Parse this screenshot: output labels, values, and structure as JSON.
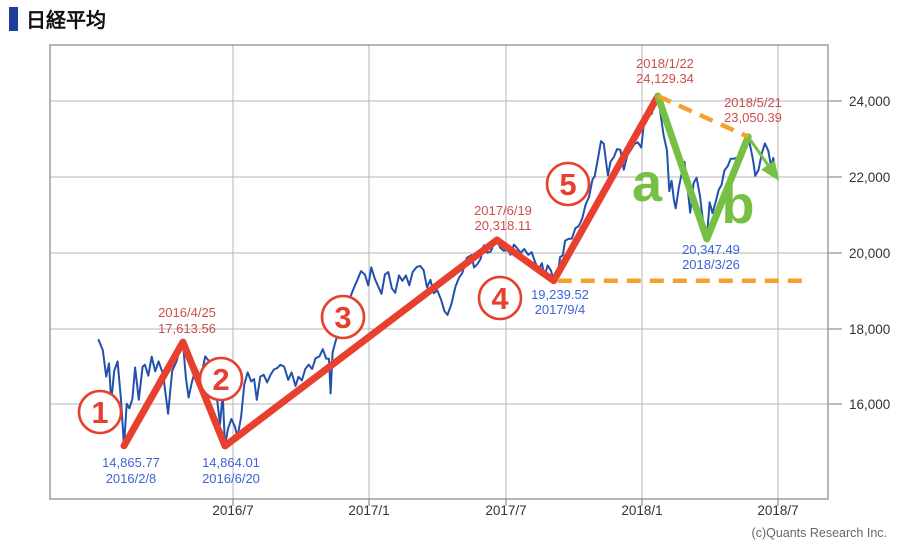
{
  "title": {
    "text": "日経平均"
  },
  "copyright": "(c)Quants Research Inc.",
  "colors": {
    "title_bullet": "#1e3f9c",
    "label_red": "#cc4f4f",
    "label_blue": "#3f63d6",
    "axis_text": "#333333",
    "copyright_gray": "#666666",
    "grid": "#b4b4b4",
    "border": "#8f8f8f"
  },
  "chart_data": {
    "type": "line",
    "title": "日経平均",
    "x_axis": {
      "ticks": [
        "2016/7",
        "2017/1",
        "2017/7",
        "2018/1",
        "2018/7"
      ],
      "tick_t_values": [
        6,
        12,
        18,
        24,
        30
      ],
      "t_unit": "months since 2016/01"
    },
    "y_axis": {
      "side": "right",
      "ticks": [
        "24,000",
        "22,000",
        "20,000",
        "18,000",
        "16,000"
      ],
      "tick_values": [
        24000,
        22000,
        20000,
        18000,
        16000
      ]
    },
    "grid": true,
    "legend": "none",
    "wave_markers": {
      "impulse": [
        "1",
        "2",
        "3",
        "4",
        "5"
      ],
      "correction": [
        "a",
        "b"
      ]
    },
    "point_labels": [
      {
        "line1": "14,865.77",
        "line2": "2016/2/8",
        "color": "blue"
      },
      {
        "line1": "2016/4/25",
        "line2": "17,613.56",
        "color": "red"
      },
      {
        "line1": "14,864.01",
        "line2": "2016/6/20",
        "color": "blue"
      },
      {
        "line1": "2017/6/19",
        "line2": "20,318.11",
        "color": "red"
      },
      {
        "line1": "19,239.52",
        "line2": "2017/9/4",
        "color": "blue"
      },
      {
        "line1": "2018/1/22",
        "line2": "24,129.34",
        "color": "red"
      },
      {
        "line1": "20,347.49",
        "line2": "2018/3/26",
        "color": "blue"
      },
      {
        "line1": "2018/5/21",
        "line2": "23,050.39",
        "color": "red"
      }
    ],
    "series": [
      {
        "name": "nikkei-daily-close",
        "color": "#2251ad",
        "style": "solid",
        "points": [
          [
            0.1,
            17690
          ],
          [
            0.3,
            17400
          ],
          [
            0.45,
            16700
          ],
          [
            0.57,
            17050
          ],
          [
            0.67,
            16020
          ],
          [
            0.8,
            16850
          ],
          [
            0.95,
            17100
          ],
          [
            1.1,
            16085
          ],
          [
            1.23,
            14866
          ],
          [
            1.35,
            15980
          ],
          [
            1.47,
            15860
          ],
          [
            1.6,
            16110
          ],
          [
            1.72,
            16940
          ],
          [
            1.88,
            16085
          ],
          [
            2.05,
            16960
          ],
          [
            2.15,
            17014
          ],
          [
            2.3,
            16724
          ],
          [
            2.45,
            17230
          ],
          [
            2.6,
            16840
          ],
          [
            2.75,
            17103
          ],
          [
            2.95,
            16760
          ],
          [
            3.17,
            15715
          ],
          [
            3.35,
            16850
          ],
          [
            3.55,
            17120
          ],
          [
            3.72,
            17572
          ],
          [
            3.82,
            17613
          ],
          [
            3.95,
            16666
          ],
          [
            4.07,
            16147
          ],
          [
            4.22,
            16565
          ],
          [
            4.4,
            16940
          ],
          [
            4.6,
            16650
          ],
          [
            4.8,
            17235
          ],
          [
            4.97,
            17110
          ],
          [
            5.12,
            16670
          ],
          [
            5.3,
            16210
          ],
          [
            5.45,
            15434
          ],
          [
            5.57,
            16240
          ],
          [
            5.67,
            14864
          ],
          [
            5.8,
            15309
          ],
          [
            5.95,
            15575
          ],
          [
            6.1,
            15382
          ],
          [
            6.22,
            15106
          ],
          [
            6.38,
            15630
          ],
          [
            6.52,
            16500
          ],
          [
            6.67,
            16810
          ],
          [
            6.82,
            16570
          ],
          [
            6.95,
            16635
          ],
          [
            7.07,
            16083
          ],
          [
            7.22,
            16700
          ],
          [
            7.37,
            16746
          ],
          [
            7.52,
            16546
          ],
          [
            7.67,
            16745
          ],
          [
            7.82,
            16887
          ],
          [
            7.97,
            16926
          ],
          [
            8.1,
            17012
          ],
          [
            8.27,
            16966
          ],
          [
            8.45,
            16614
          ],
          [
            8.6,
            16807
          ],
          [
            8.77,
            16450
          ],
          [
            8.9,
            16693
          ],
          [
            9.05,
            16598
          ],
          [
            9.2,
            16900
          ],
          [
            9.35,
            17018
          ],
          [
            9.5,
            16900
          ],
          [
            9.65,
            17185
          ],
          [
            9.82,
            17234
          ],
          [
            9.97,
            17425
          ],
          [
            10.12,
            17177
          ],
          [
            10.24,
            17171
          ],
          [
            10.31,
            16252
          ],
          [
            10.4,
            17344
          ],
          [
            10.55,
            17672
          ],
          [
            10.7,
            17967
          ],
          [
            10.85,
            18163
          ],
          [
            11.0,
            18513
          ],
          [
            11.15,
            18765
          ],
          [
            11.3,
            18996
          ],
          [
            11.48,
            19251
          ],
          [
            11.65,
            19494
          ],
          [
            11.82,
            19401
          ],
          [
            11.97,
            19114
          ],
          [
            12.1,
            19594
          ],
          [
            12.25,
            19301
          ],
          [
            12.4,
            19095
          ],
          [
            12.55,
            18894
          ],
          [
            12.7,
            19402
          ],
          [
            12.85,
            19467
          ],
          [
            13.0,
            19041
          ],
          [
            13.15,
            18918
          ],
          [
            13.32,
            19379
          ],
          [
            13.47,
            19238
          ],
          [
            13.62,
            19379
          ],
          [
            13.77,
            19119
          ],
          [
            13.92,
            19469
          ],
          [
            14.1,
            19604
          ],
          [
            14.25,
            19633
          ],
          [
            14.4,
            19521
          ],
          [
            14.55,
            19063
          ],
          [
            14.7,
            19263
          ],
          [
            14.85,
            18909
          ],
          [
            15.0,
            18983
          ],
          [
            15.17,
            18733
          ],
          [
            15.32,
            18432
          ],
          [
            15.45,
            18335
          ],
          [
            15.62,
            18621
          ],
          [
            15.8,
            19079
          ],
          [
            15.95,
            19310
          ],
          [
            16.1,
            19446
          ],
          [
            16.3,
            19843
          ],
          [
            16.5,
            19919
          ],
          [
            16.62,
            19590
          ],
          [
            16.77,
            19686
          ],
          [
            16.9,
            19813
          ],
          [
            17.05,
            20177
          ],
          [
            17.2,
            19979
          ],
          [
            17.35,
            20013
          ],
          [
            17.5,
            20230
          ],
          [
            17.62,
            20318
          ],
          [
            17.77,
            20110
          ],
          [
            17.92,
            20033
          ],
          [
            18.1,
            20055
          ],
          [
            18.22,
            19929
          ],
          [
            18.37,
            20195
          ],
          [
            18.52,
            20099
          ],
          [
            18.67,
            19975
          ],
          [
            18.82,
            20080
          ],
          [
            19.0,
            19925
          ],
          [
            19.15,
            19996
          ],
          [
            19.3,
            19729
          ],
          [
            19.45,
            19537
          ],
          [
            19.6,
            19703
          ],
          [
            19.72,
            19353
          ],
          [
            19.85,
            19646
          ],
          [
            20.0,
            19508
          ],
          [
            20.12,
            19240
          ],
          [
            20.27,
            19275
          ],
          [
            20.4,
            19865
          ],
          [
            20.52,
            19910
          ],
          [
            20.62,
            20299
          ],
          [
            20.77,
            20347
          ],
          [
            20.92,
            20356
          ],
          [
            21.07,
            20629
          ],
          [
            21.22,
            20690
          ],
          [
            21.37,
            20881
          ],
          [
            21.52,
            21255
          ],
          [
            21.67,
            21458
          ],
          [
            21.82,
            21911
          ],
          [
            21.92,
            22008
          ],
          [
            22.05,
            22420
          ],
          [
            22.2,
            22937
          ],
          [
            22.32,
            22869
          ],
          [
            22.42,
            22380
          ],
          [
            22.5,
            22028
          ],
          [
            22.62,
            22396
          ],
          [
            22.77,
            22523
          ],
          [
            22.9,
            22725
          ],
          [
            23.05,
            22707
          ],
          [
            23.2,
            22177
          ],
          [
            23.35,
            22553
          ],
          [
            23.5,
            22694
          ],
          [
            23.67,
            22866
          ],
          [
            23.82,
            22902
          ],
          [
            23.97,
            22765
          ],
          [
            24.1,
            23506
          ],
          [
            24.22,
            23714
          ],
          [
            24.32,
            23849
          ],
          [
            24.42,
            23653
          ],
          [
            24.55,
            23951
          ],
          [
            24.7,
            24129
          ],
          [
            24.82,
            23629
          ],
          [
            24.95,
            23098
          ],
          [
            25.1,
            22682
          ],
          [
            25.2,
            21610
          ],
          [
            25.3,
            21890
          ],
          [
            25.4,
            21383
          ],
          [
            25.48,
            21154
          ],
          [
            25.62,
            21720
          ],
          [
            25.77,
            22153
          ],
          [
            25.87,
            22389
          ],
          [
            26.0,
            21724
          ],
          [
            26.12,
            21042
          ],
          [
            26.27,
            21824
          ],
          [
            26.4,
            21968
          ],
          [
            26.55,
            21481
          ],
          [
            26.72,
            20618
          ],
          [
            26.85,
            20347
          ],
          [
            26.97,
            21317
          ],
          [
            27.1,
            21031
          ],
          [
            27.22,
            21292
          ],
          [
            27.37,
            21645
          ],
          [
            27.5,
            21779
          ],
          [
            27.62,
            22158
          ],
          [
            27.77,
            22278
          ],
          [
            27.9,
            22468
          ],
          [
            28.05,
            22473
          ],
          [
            28.2,
            22497
          ],
          [
            28.35,
            22758
          ],
          [
            28.5,
            22866
          ],
          [
            28.67,
            23050
          ],
          [
            28.8,
            22689
          ],
          [
            28.9,
            22358
          ],
          [
            28.98,
            22018
          ],
          [
            29.12,
            22172
          ],
          [
            29.27,
            22625
          ],
          [
            29.4,
            22878
          ],
          [
            29.55,
            22680
          ],
          [
            29.67,
            22278
          ],
          [
            29.77,
            22490
          ],
          [
            29.88,
            22050
          ]
        ]
      },
      {
        "name": "elliott-impulse-wave-1-5",
        "color": "#e8402e",
        "style": "solid-thick",
        "points": [
          [
            1.23,
            14865.77
          ],
          [
            3.82,
            17613.56
          ],
          [
            5.67,
            14864.01
          ],
          [
            17.62,
            20318.11
          ],
          [
            20.12,
            19239.52
          ],
          [
            24.7,
            24129.34
          ]
        ]
      },
      {
        "name": "correction-wave-a-b",
        "color": "#76c043",
        "style": "solid-thick",
        "points": [
          [
            24.7,
            24129.34
          ],
          [
            26.85,
            20347.49
          ],
          [
            28.67,
            23050.39
          ]
        ]
      },
      {
        "name": "projection-arrow-c",
        "color": "#76c043",
        "style": "thin-arrow",
        "points": [
          [
            28.67,
            23050.39
          ],
          [
            29.95,
            21950
          ]
        ]
      },
      {
        "name": "resistance-trendline",
        "color": "#f5a02c",
        "style": "dashed",
        "points": [
          [
            24.7,
            24129.34
          ],
          [
            28.67,
            23050.39
          ]
        ]
      },
      {
        "name": "support-level-19239",
        "color": "#f5a02c",
        "style": "dashed",
        "points": [
          [
            20.3,
            19239.52
          ],
          [
            31.4,
            19239.52
          ]
        ]
      }
    ]
  }
}
